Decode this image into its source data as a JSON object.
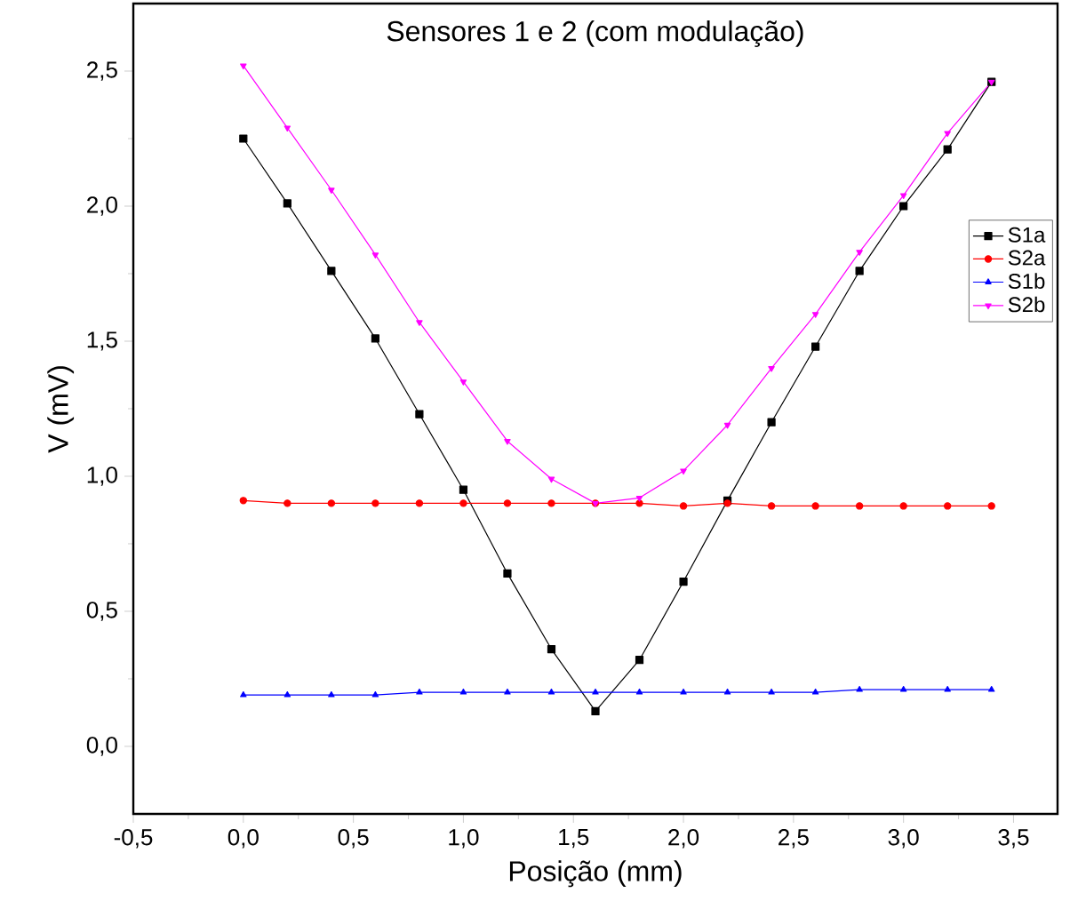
{
  "chart_data": {
    "type": "line",
    "title": "Sensores 1 e 2 (com modulação)",
    "xlabel": "Posição (mm)",
    "ylabel": "V (mV)",
    "x": [
      0,
      0.2,
      0.4,
      0.6,
      0.8,
      1.0,
      1.2,
      1.4,
      1.6,
      1.8,
      2.0,
      2.2,
      2.4,
      2.6,
      2.8,
      3.0,
      3.2,
      3.4
    ],
    "series": [
      {
        "name": "S1a",
        "color": "#000000",
        "marker": "square",
        "values": [
          2.25,
          2.01,
          1.76,
          1.51,
          1.23,
          0.95,
          0.64,
          0.36,
          0.13,
          0.32,
          0.61,
          0.91,
          1.2,
          1.48,
          1.76,
          2.0,
          2.21,
          2.46
        ]
      },
      {
        "name": "S2a",
        "color": "#ff0000",
        "marker": "circle",
        "values": [
          0.91,
          0.9,
          0.9,
          0.9,
          0.9,
          0.9,
          0.9,
          0.9,
          0.9,
          0.9,
          0.89,
          0.9,
          0.89,
          0.89,
          0.89,
          0.89,
          0.89,
          0.89
        ]
      },
      {
        "name": "S1b",
        "color": "#0000ff",
        "marker": "triangle",
        "values": [
          0.19,
          0.19,
          0.19,
          0.19,
          0.2,
          0.2,
          0.2,
          0.2,
          0.2,
          0.2,
          0.2,
          0.2,
          0.2,
          0.2,
          0.21,
          0.21,
          0.21,
          0.21
        ]
      },
      {
        "name": "S2b",
        "color": "#ff00ff",
        "marker": "triangle-down",
        "values": [
          2.52,
          2.29,
          2.06,
          1.82,
          1.57,
          1.35,
          1.13,
          0.99,
          0.9,
          0.92,
          1.02,
          1.19,
          1.4,
          1.6,
          1.83,
          2.04,
          2.27,
          2.46
        ]
      }
    ],
    "xlim": [
      -0.5,
      3.7
    ],
    "ylim": [
      -0.25,
      2.75
    ],
    "xticks": [
      {
        "value": -0.5,
        "label": "-0,5"
      },
      {
        "value": 0,
        "label": "0,0"
      },
      {
        "value": 0.5,
        "label": "0,5"
      },
      {
        "value": 1,
        "label": "1,0"
      },
      {
        "value": 1.5,
        "label": "1,5"
      },
      {
        "value": 2,
        "label": "2,0"
      },
      {
        "value": 2.5,
        "label": "2,5"
      },
      {
        "value": 3,
        "label": "3,0"
      },
      {
        "value": 3.5,
        "label": "3,5"
      }
    ],
    "yticks": [
      {
        "value": 0,
        "label": "0,0"
      },
      {
        "value": 0.5,
        "label": "0,5"
      },
      {
        "value": 1,
        "label": "1,0"
      },
      {
        "value": 1.5,
        "label": "1,5"
      },
      {
        "value": 2,
        "label": "2,0"
      },
      {
        "value": 2.5,
        "label": "2,5"
      }
    ],
    "legend": "right",
    "grid": false,
    "line_style": "solid"
  }
}
